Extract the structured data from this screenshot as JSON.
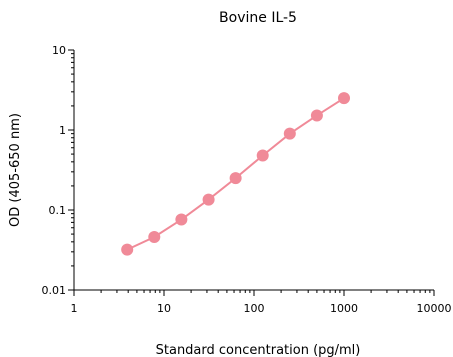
{
  "chart_data": {
    "type": "scatter",
    "title": "Bovine IL-5",
    "xlabel": "Standard concentration (pg/ml)",
    "ylabel": "OD (405-650 nm)",
    "xscale": "log",
    "yscale": "log",
    "xlim": [
      1,
      10000
    ],
    "ylim": [
      0.01,
      10
    ],
    "x_ticks": [
      1,
      10,
      100,
      1000,
      10000
    ],
    "x_tick_labels": [
      "1",
      "10",
      "100",
      "1000",
      "10000"
    ],
    "y_ticks": [
      0.01,
      0.1,
      1,
      10
    ],
    "y_tick_labels": [
      "0.01",
      "0.1",
      "1",
      "10"
    ],
    "grid": false,
    "legend": "none",
    "series": [
      {
        "color": "#f08a98",
        "x": [
          3.9,
          7.8,
          15.6,
          31.3,
          62.5,
          125,
          250,
          500,
          1000
        ],
        "y": [
          0.032,
          0.046,
          0.076,
          0.135,
          0.25,
          0.48,
          0.9,
          1.52,
          2.5
        ]
      }
    ]
  }
}
